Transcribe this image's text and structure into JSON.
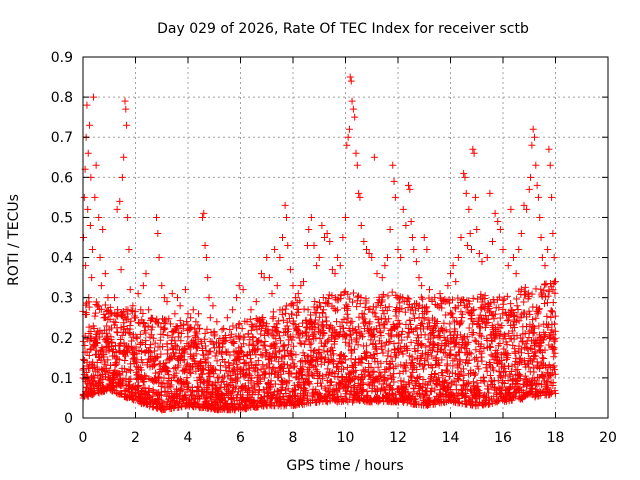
{
  "chart_data": {
    "type": "scatter",
    "title": "Day 029 of 2026, Rate Of TEC Index for receiver sctb",
    "xlabel": "GPS time / hours",
    "ylabel": "ROTI / TECUs",
    "xlim": [
      0,
      20
    ],
    "ylim": [
      0,
      0.9
    ],
    "xticks": [
      0,
      2,
      4,
      6,
      8,
      10,
      12,
      14,
      16,
      18,
      20
    ],
    "yticks": [
      0,
      0.1,
      0.2,
      0.3,
      0.4,
      0.5,
      0.6,
      0.7,
      0.8,
      0.9
    ],
    "grid": true,
    "marker": "+",
    "color": "#ff0000",
    "series": [
      {
        "name": "ROTI",
        "points": [
          [
            0.02,
            0.45
          ],
          [
            0.05,
            0.55
          ],
          [
            0.08,
            0.62
          ],
          [
            0.1,
            0.38
          ],
          [
            0.12,
            0.7
          ],
          [
            0.15,
            0.78
          ],
          [
            0.18,
            0.52
          ],
          [
            0.2,
            0.66
          ],
          [
            0.22,
            0.3
          ],
          [
            0.25,
            0.73
          ],
          [
            0.28,
            0.48
          ],
          [
            0.3,
            0.6
          ],
          [
            0.33,
            0.35
          ],
          [
            0.36,
            0.42
          ],
          [
            0.4,
            0.8
          ],
          [
            0.45,
            0.55
          ],
          [
            0.5,
            0.63
          ],
          [
            0.55,
            0.28
          ],
          [
            0.6,
            0.5
          ],
          [
            0.65,
            0.4
          ],
          [
            0.7,
            0.33
          ],
          [
            0.75,
            0.47
          ],
          [
            0.8,
            0.25
          ],
          [
            0.85,
            0.36
          ],
          [
            0.9,
            0.21
          ],
          [
            0.95,
            0.3
          ],
          [
            1.0,
            0.22
          ],
          [
            1.1,
            0.26
          ],
          [
            1.2,
            0.3
          ],
          [
            1.3,
            0.52
          ],
          [
            1.4,
            0.54
          ],
          [
            1.45,
            0.37
          ],
          [
            1.5,
            0.6
          ],
          [
            1.55,
            0.65
          ],
          [
            1.6,
            0.79
          ],
          [
            1.63,
            0.77
          ],
          [
            1.66,
            0.73
          ],
          [
            1.7,
            0.5
          ],
          [
            1.75,
            0.42
          ],
          [
            1.8,
            0.32
          ],
          [
            1.9,
            0.28
          ],
          [
            2.0,
            0.25
          ],
          [
            2.1,
            0.31
          ],
          [
            2.2,
            0.27
          ],
          [
            2.3,
            0.33
          ],
          [
            2.4,
            0.36
          ],
          [
            2.5,
            0.27
          ],
          [
            2.6,
            0.22
          ],
          [
            2.8,
            0.5
          ],
          [
            2.85,
            0.46
          ],
          [
            2.9,
            0.4
          ],
          [
            3.0,
            0.33
          ],
          [
            3.1,
            0.3
          ],
          [
            3.2,
            0.29
          ],
          [
            3.4,
            0.31
          ],
          [
            3.5,
            0.26
          ],
          [
            3.6,
            0.3
          ],
          [
            3.7,
            0.28
          ],
          [
            3.9,
            0.32
          ],
          [
            4.0,
            0.26
          ],
          [
            4.1,
            0.25
          ],
          [
            4.2,
            0.27
          ],
          [
            4.3,
            0.24
          ],
          [
            4.4,
            0.26
          ],
          [
            4.55,
            0.5
          ],
          [
            4.6,
            0.51
          ],
          [
            4.65,
            0.43
          ],
          [
            4.7,
            0.4
          ],
          [
            4.75,
            0.35
          ],
          [
            4.8,
            0.3
          ],
          [
            4.85,
            0.25
          ],
          [
            4.95,
            0.28
          ],
          [
            5.1,
            0.24
          ],
          [
            5.3,
            0.22
          ],
          [
            5.5,
            0.25
          ],
          [
            5.7,
            0.27
          ],
          [
            5.85,
            0.3
          ],
          [
            5.95,
            0.33
          ],
          [
            6.1,
            0.32
          ],
          [
            6.25,
            0.24
          ],
          [
            6.4,
            0.27
          ],
          [
            6.6,
            0.29
          ],
          [
            6.8,
            0.36
          ],
          [
            6.9,
            0.35
          ],
          [
            7.0,
            0.4
          ],
          [
            7.1,
            0.35
          ],
          [
            7.2,
            0.31
          ],
          [
            7.3,
            0.42
          ],
          [
            7.4,
            0.33
          ],
          [
            7.5,
            0.4
          ],
          [
            7.6,
            0.45
          ],
          [
            7.7,
            0.53
          ],
          [
            7.75,
            0.5
          ],
          [
            7.8,
            0.43
          ],
          [
            7.9,
            0.37
          ],
          [
            8.0,
            0.33
          ],
          [
            8.1,
            0.3
          ],
          [
            8.2,
            0.31
          ],
          [
            8.3,
            0.33
          ],
          [
            8.4,
            0.34
          ],
          [
            8.55,
            0.43
          ],
          [
            8.6,
            0.47
          ],
          [
            8.7,
            0.5
          ],
          [
            8.8,
            0.43
          ],
          [
            8.9,
            0.38
          ],
          [
            9.0,
            0.4
          ],
          [
            9.1,
            0.48
          ],
          [
            9.2,
            0.45
          ],
          [
            9.3,
            0.46
          ],
          [
            9.4,
            0.44
          ],
          [
            9.5,
            0.37
          ],
          [
            9.6,
            0.36
          ],
          [
            9.7,
            0.4
          ],
          [
            9.8,
            0.38
          ],
          [
            9.9,
            0.45
          ],
          [
            10.0,
            0.5
          ],
          [
            10.05,
            0.68
          ],
          [
            10.1,
            0.7
          ],
          [
            10.15,
            0.72
          ],
          [
            10.18,
            0.85
          ],
          [
            10.22,
            0.84
          ],
          [
            10.25,
            0.79
          ],
          [
            10.3,
            0.77
          ],
          [
            10.35,
            0.75
          ],
          [
            10.4,
            0.66
          ],
          [
            10.45,
            0.63
          ],
          [
            10.5,
            0.56
          ],
          [
            10.55,
            0.55
          ],
          [
            10.6,
            0.48
          ],
          [
            10.7,
            0.44
          ],
          [
            10.8,
            0.42
          ],
          [
            10.9,
            0.41
          ],
          [
            11.0,
            0.4
          ],
          [
            11.1,
            0.65
          ],
          [
            11.2,
            0.36
          ],
          [
            11.4,
            0.35
          ],
          [
            11.5,
            0.38
          ],
          [
            11.6,
            0.4
          ],
          [
            11.7,
            0.47
          ],
          [
            11.8,
            0.63
          ],
          [
            11.85,
            0.59
          ],
          [
            11.9,
            0.55
          ],
          [
            12.0,
            0.42
          ],
          [
            12.1,
            0.4
          ],
          [
            12.2,
            0.52
          ],
          [
            12.3,
            0.48
          ],
          [
            12.4,
            0.58
          ],
          [
            12.45,
            0.57
          ],
          [
            12.5,
            0.49
          ],
          [
            12.55,
            0.45
          ],
          [
            12.6,
            0.42
          ],
          [
            12.7,
            0.39
          ],
          [
            12.8,
            0.35
          ],
          [
            12.9,
            0.33
          ],
          [
            13.0,
            0.45
          ],
          [
            13.1,
            0.42
          ],
          [
            13.2,
            0.32
          ],
          [
            13.4,
            0.3
          ],
          [
            13.5,
            0.28
          ],
          [
            13.6,
            0.31
          ],
          [
            13.8,
            0.29
          ],
          [
            13.9,
            0.33
          ],
          [
            14.0,
            0.36
          ],
          [
            14.1,
            0.38
          ],
          [
            14.2,
            0.34
          ],
          [
            14.3,
            0.4
          ],
          [
            14.4,
            0.45
          ],
          [
            14.5,
            0.61
          ],
          [
            14.55,
            0.6
          ],
          [
            14.6,
            0.56
          ],
          [
            14.65,
            0.43
          ],
          [
            14.7,
            0.52
          ],
          [
            14.75,
            0.46
          ],
          [
            14.8,
            0.42
          ],
          [
            14.85,
            0.67
          ],
          [
            14.9,
            0.66
          ],
          [
            14.95,
            0.55
          ],
          [
            15.0,
            0.47
          ],
          [
            15.1,
            0.41
          ],
          [
            15.2,
            0.39
          ],
          [
            15.4,
            0.4
          ],
          [
            15.5,
            0.56
          ],
          [
            15.6,
            0.44
          ],
          [
            15.7,
            0.51
          ],
          [
            15.8,
            0.49
          ],
          [
            15.9,
            0.47
          ],
          [
            16.0,
            0.42
          ],
          [
            16.2,
            0.38
          ],
          [
            16.3,
            0.52
          ],
          [
            16.4,
            0.4
          ],
          [
            16.5,
            0.36
          ],
          [
            16.6,
            0.42
          ],
          [
            16.7,
            0.46
          ],
          [
            16.8,
            0.53
          ],
          [
            16.9,
            0.52
          ],
          [
            17.0,
            0.57
          ],
          [
            17.05,
            0.6
          ],
          [
            17.1,
            0.68
          ],
          [
            17.15,
            0.72
          ],
          [
            17.2,
            0.7
          ],
          [
            17.25,
            0.63
          ],
          [
            17.3,
            0.58
          ],
          [
            17.35,
            0.55
          ],
          [
            17.4,
            0.5
          ],
          [
            17.45,
            0.45
          ],
          [
            17.5,
            0.4
          ],
          [
            17.6,
            0.38
          ],
          [
            17.7,
            0.42
          ],
          [
            17.75,
            0.67
          ],
          [
            17.8,
            0.63
          ],
          [
            17.85,
            0.55
          ],
          [
            17.9,
            0.46
          ],
          [
            17.95,
            0.4
          ],
          [
            18.0,
            0.34
          ]
        ],
        "dense_band": {
          "note": "dense scatter of + markers for every time step from 0 to 18 h",
          "x_range": [
            0,
            18
          ],
          "step": 0.02,
          "y_floor_by_hour": [
            0.05,
            0.07,
            0.04,
            0.02,
            0.03,
            0.02,
            0.02,
            0.03,
            0.03,
            0.04,
            0.04,
            0.04,
            0.04,
            0.03,
            0.04,
            0.03,
            0.04,
            0.05,
            0.06
          ],
          "y_ceiling_by_hour": [
            0.3,
            0.28,
            0.27,
            0.25,
            0.24,
            0.22,
            0.24,
            0.26,
            0.29,
            0.3,
            0.32,
            0.3,
            0.32,
            0.3,
            0.3,
            0.31,
            0.3,
            0.33,
            0.35
          ]
        }
      }
    ]
  }
}
